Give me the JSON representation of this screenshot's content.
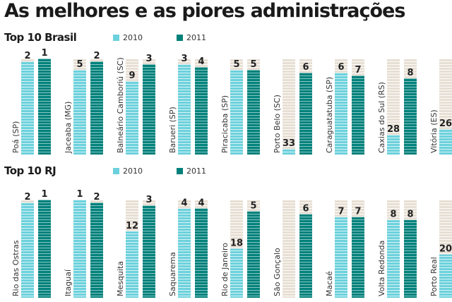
{
  "title": "As melhores e as piores administrações",
  "colors": {
    "y2010": "#6cd1dc",
    "y2011": "#00817b",
    "background_bar": "#e7dfd4"
  },
  "chart_data": [
    {
      "type": "bar",
      "title": "Top 10 Brasil",
      "series_names": [
        "2010",
        "2011"
      ],
      "categories": [
        "Poá (SP)",
        "Jaceaba (MG)",
        "Balneário Camboriú (SC)",
        "Barueri (SP)",
        "Piracicaba (SP)",
        "Porto Belo (SC)",
        "Caraguatatuba (SP)",
        "Caxias do Sul (RS)",
        "Vitória (ES)"
      ],
      "series": [
        {
          "name": "2010",
          "values": [
            2,
            5,
            9,
            3,
            5,
            33,
            6,
            28,
            26
          ]
        },
        {
          "name": "2011",
          "values": [
            1,
            2,
            3,
            4,
            5,
            6,
            7,
            8,
            null
          ]
        }
      ],
      "legend": "top"
    },
    {
      "type": "bar",
      "title": "Top 10 RJ",
      "series_names": [
        "2010",
        "2011"
      ],
      "categories": [
        "Rio das Ostras",
        "Itaguaí",
        "Mesquita",
        "Saquarema",
        "Rio de Janeiro",
        "São Gonçalo",
        "Macaé",
        "Volta Redonda",
        "Porto Real"
      ],
      "series": [
        {
          "name": "2010",
          "values": [
            2,
            1,
            12,
            4,
            18,
            null,
            7,
            8,
            20
          ]
        },
        {
          "name": "2011",
          "values": [
            1,
            2,
            3,
            4,
            5,
            6,
            7,
            8,
            null
          ]
        }
      ],
      "legend": "top"
    }
  ]
}
